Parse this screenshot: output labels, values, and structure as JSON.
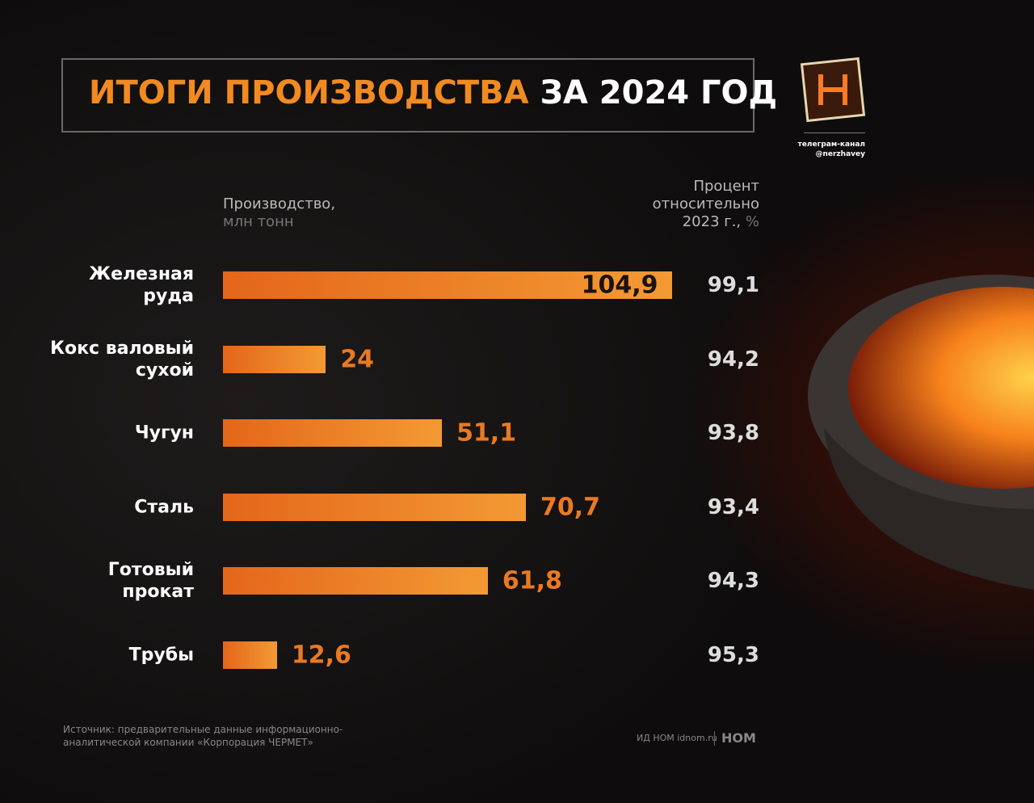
{
  "chart_data": {
    "type": "bar",
    "orientation": "horizontal",
    "title": "ИТОГИ ПРОИЗВОДСТВА",
    "title_suffix": "ЗА 2024 ГОД",
    "value_header": "Производство,",
    "value_unit": "млн тонн",
    "percent_header": "Процент относительно 2023 г.,",
    "percent_unit": "%",
    "categories": [
      "Железная руда",
      "Кокс валовый сухой",
      "Чугун",
      "Сталь",
      "Готовый прокат",
      "Трубы"
    ],
    "values": [
      104.9,
      24,
      51.1,
      70.7,
      61.8,
      12.6
    ],
    "value_labels": [
      "104,9",
      "24",
      "51,1",
      "70,7",
      "61,8",
      "12,6"
    ],
    "percent_values": [
      99.1,
      94.2,
      93.8,
      93.4,
      94.3,
      95.3
    ],
    "percent_labels": [
      "99,1",
      "94,2",
      "93,8",
      "93,4",
      "94,3",
      "95,3"
    ],
    "color": "#ea7a22",
    "xlim": [
      0,
      105
    ],
    "source": "Источник: предварительные данные информационно-аналитической компании «Корпорация ЧЕРМЕТ»",
    "publisher": "ИД НОМ idnom.ru",
    "publisher_logo": "НОМ",
    "channel": "телеграм-канал",
    "channel_handle": "@nerzhavey"
  }
}
